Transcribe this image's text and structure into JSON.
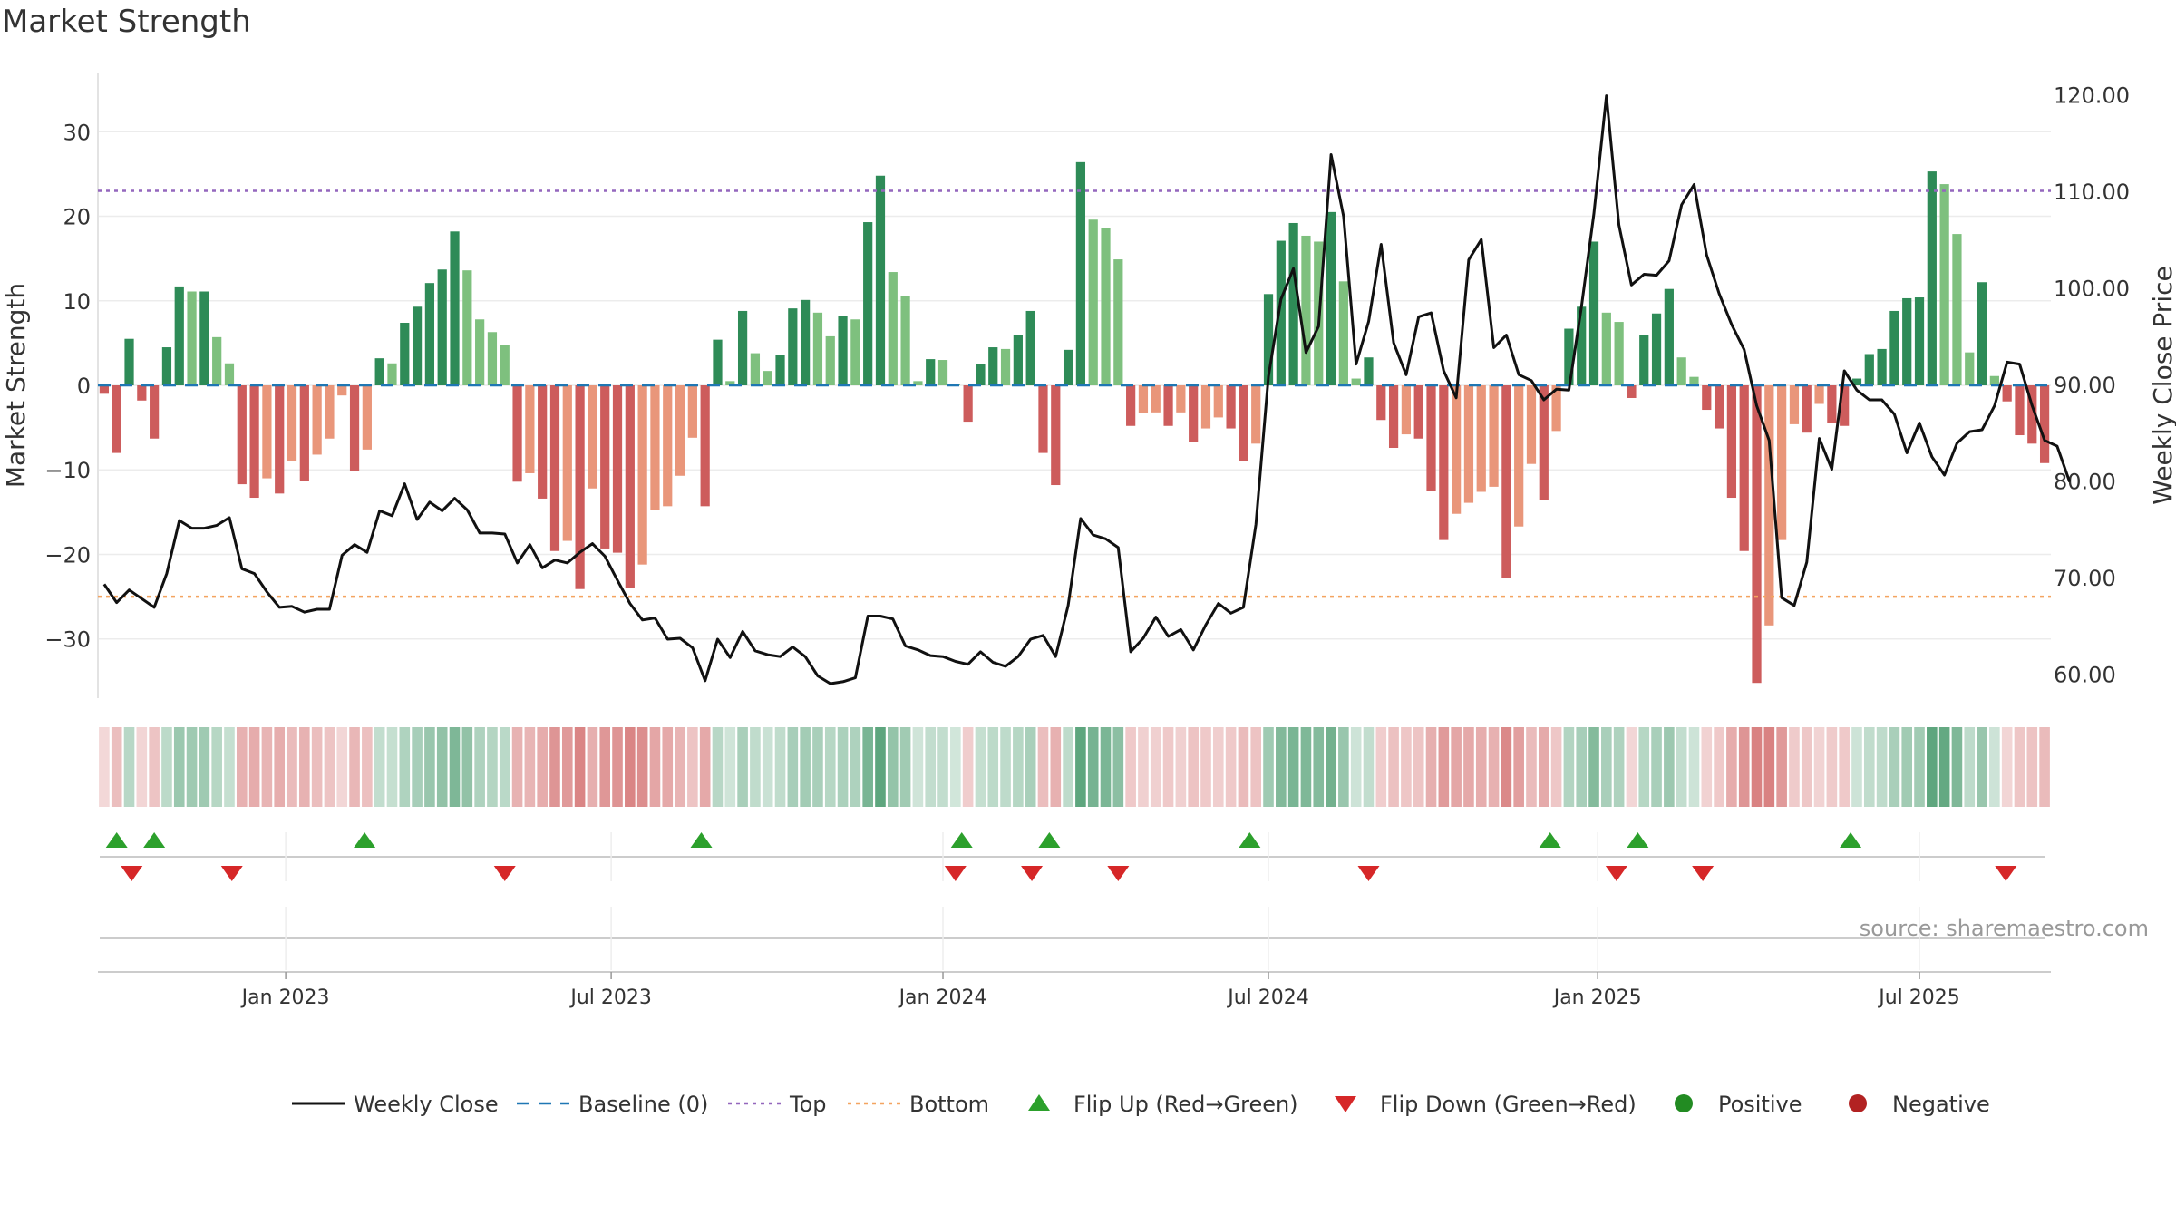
{
  "title": "Market Strength",
  "source": "source: sharemaestro.com",
  "colors": {
    "pos_dark": "#2e8b57",
    "pos_light": "#7ec07e",
    "neg_dark": "#cd5c5c",
    "neg_light": "#e9967a",
    "baseline": "#1f77b4",
    "top": "#9467bd",
    "bottom": "#f4a460",
    "close": "#111111",
    "flip_up": "#2ca02c",
    "flip_down": "#d62728",
    "positive": "#228b22",
    "negative": "#b22222"
  },
  "chart_data": {
    "type": "bar",
    "ylabel": "Market Strength",
    "y2label": "Weekly Close Price",
    "ylim": [
      -37,
      37
    ],
    "y2lim": [
      57.5,
      122.3
    ],
    "yticks": [
      "30",
      "20",
      "10",
      "0",
      "−10",
      "−20",
      "−30"
    ],
    "y2ticks": [
      "120.00",
      "110.00",
      "100.00",
      "90.00",
      "80.00",
      "70.00",
      "60.00"
    ],
    "top_line": 23,
    "bottom_line": -25,
    "x_ticks": [
      "Jan 2023",
      "Jul 2023",
      "Jan 2024",
      "Jul 2024",
      "Jan 2025",
      "Jul 2025"
    ],
    "tick_week_index": [
      15,
      41,
      67.5,
      93.5,
      119.8,
      145.5
    ],
    "strength": [
      -1,
      -8,
      5.5,
      -1.8,
      -6.3,
      4.5,
      11.7,
      11.1,
      11.1,
      5.7,
      2.6,
      -11.7,
      -13.3,
      -11,
      -12.8,
      -8.9,
      -11.3,
      -8.2,
      -6.3,
      -1.2,
      -10.1,
      -7.6,
      3.2,
      2.6,
      7.4,
      9.3,
      12.1,
      13.7,
      18.2,
      13.6,
      7.8,
      6.3,
      4.8,
      -11.4,
      -10.4,
      -13.4,
      -19.6,
      -18.4,
      -24.1,
      -12.2,
      -19.3,
      -19.8,
      -24,
      -21.2,
      -14.8,
      -14.3,
      -10.7,
      -6.2,
      -14.3,
      5.4,
      0.5,
      8.8,
      3.8,
      1.7,
      3.6,
      9.1,
      10.1,
      8.6,
      5.8,
      8.2,
      7.8,
      19.3,
      24.8,
      13.4,
      10.6,
      0.5,
      3.1,
      3,
      0.2,
      -4.3,
      2.5,
      4.5,
      4.3,
      5.9,
      8.8,
      -8,
      -11.8,
      4.2,
      26.4,
      19.6,
      18.6,
      14.9,
      -4.8,
      -3.3,
      -3.2,
      -4.8,
      -3.2,
      -6.7,
      -5.1,
      -3.8,
      -5.1,
      -9,
      -6.9,
      10.8,
      17.1,
      19.2,
      17.7,
      17,
      20.5,
      12.3,
      0.8,
      3.3,
      -4.1,
      -7.4,
      -5.8,
      -6.3,
      -12.5,
      -18.3,
      -15.2,
      -13.9,
      -12.6,
      -12,
      -22.8,
      -16.7,
      -9.3,
      -13.6,
      -5.4,
      6.7,
      9.3,
      17,
      8.6,
      7.5,
      -1.5,
      6,
      8.5,
      11.4,
      3.3,
      1,
      -2.9,
      -5.1,
      -13.3,
      -19.6,
      -35.2,
      -28.4,
      -18.3,
      -4.6,
      -5.6,
      -2.2,
      -4.4,
      -4.8,
      0.8,
      3.7,
      4.3,
      8.8,
      10.3,
      10.4,
      25.3,
      23.8,
      17.9,
      3.9,
      12.2,
      1.1,
      -1.9,
      -5.9,
      -6.9,
      -9.2
    ],
    "weekly_close": [
      69.3,
      67.4,
      68.7,
      67.8,
      66.9,
      70.4,
      75.9,
      75.1,
      75.1,
      75.4,
      76.2,
      70.9,
      70.4,
      68.5,
      66.9,
      67.0,
      66.4,
      66.7,
      66.7,
      72.3,
      73.4,
      72.6,
      76.9,
      76.4,
      79.7,
      76.0,
      77.8,
      76.9,
      78.2,
      77.0,
      74.6,
      74.6,
      74.5,
      71.5,
      73.4,
      71.0,
      71.8,
      71.5,
      72.6,
      73.5,
      72.2,
      69.7,
      67.3,
      65.6,
      65.8,
      63.6,
      63.7,
      62.7,
      59.3,
      63.6,
      61.7,
      64.4,
      62.4,
      62.0,
      61.8,
      62.8,
      61.8,
      59.8,
      59.0,
      59.2,
      59.6,
      66.0,
      66.0,
      65.7,
      62.9,
      62.5,
      61.9,
      61.8,
      61.3,
      61.0,
      62.3,
      61.2,
      60.8,
      61.8,
      63.6,
      64.0,
      61.8,
      67.1,
      76.1,
      74.4,
      74.0,
      73.1,
      62.3,
      63.7,
      65.9,
      63.9,
      64.6,
      62.5,
      65.1,
      67.3,
      66.3,
      66.9,
      75.5,
      90.8,
      98.8,
      102.0,
      93.3,
      96.0,
      113.8,
      107.4,
      92.1,
      96.5,
      104.5,
      94.3,
      91.0,
      97.0,
      97.4,
      91.4,
      88.6,
      102.9,
      105.0,
      93.8,
      95.1,
      91.0,
      90.4,
      88.4,
      89.5,
      89.4,
      98.0,
      107.7,
      119.9,
      106.5,
      100.3,
      101.4,
      101.3,
      102.8,
      108.6,
      110.7,
      103.4,
      99.4,
      96.2,
      93.6,
      87.8,
      84.2,
      67.9,
      67.1,
      71.6,
      84.4,
      81.2,
      91.4,
      89.4,
      88.4,
      88.4,
      86.9,
      82.9,
      86.0,
      82.5,
      80.6,
      83.9,
      85.1,
      85.3,
      87.8,
      92.3,
      92.1,
      87.8,
      84.2,
      83.6,
      79.9
    ],
    "flip_up_weeks": [
      1.5,
      4.5,
      21.3,
      48.2,
      69,
      76,
      92,
      116,
      123,
      140
    ],
    "flip_down_weeks": [
      2.7,
      10.7,
      32.5,
      68.5,
      74.6,
      81.5,
      101.5,
      121.3,
      128.2,
      152.4
    ],
    "legend": [
      {
        "label": "Weekly Close",
        "kind": "line"
      },
      {
        "label": "Baseline (0)",
        "kind": "dash"
      },
      {
        "label": "Top",
        "kind": "dot_top"
      },
      {
        "label": "Bottom",
        "kind": "dot_bottom"
      },
      {
        "label": "Flip Up (Red→Green)",
        "kind": "tri_up"
      },
      {
        "label": "Flip Down (Green→Red)",
        "kind": "tri_down"
      },
      {
        "label": "Positive",
        "kind": "dot_pos"
      },
      {
        "label": "Negative",
        "kind": "dot_neg"
      }
    ]
  }
}
